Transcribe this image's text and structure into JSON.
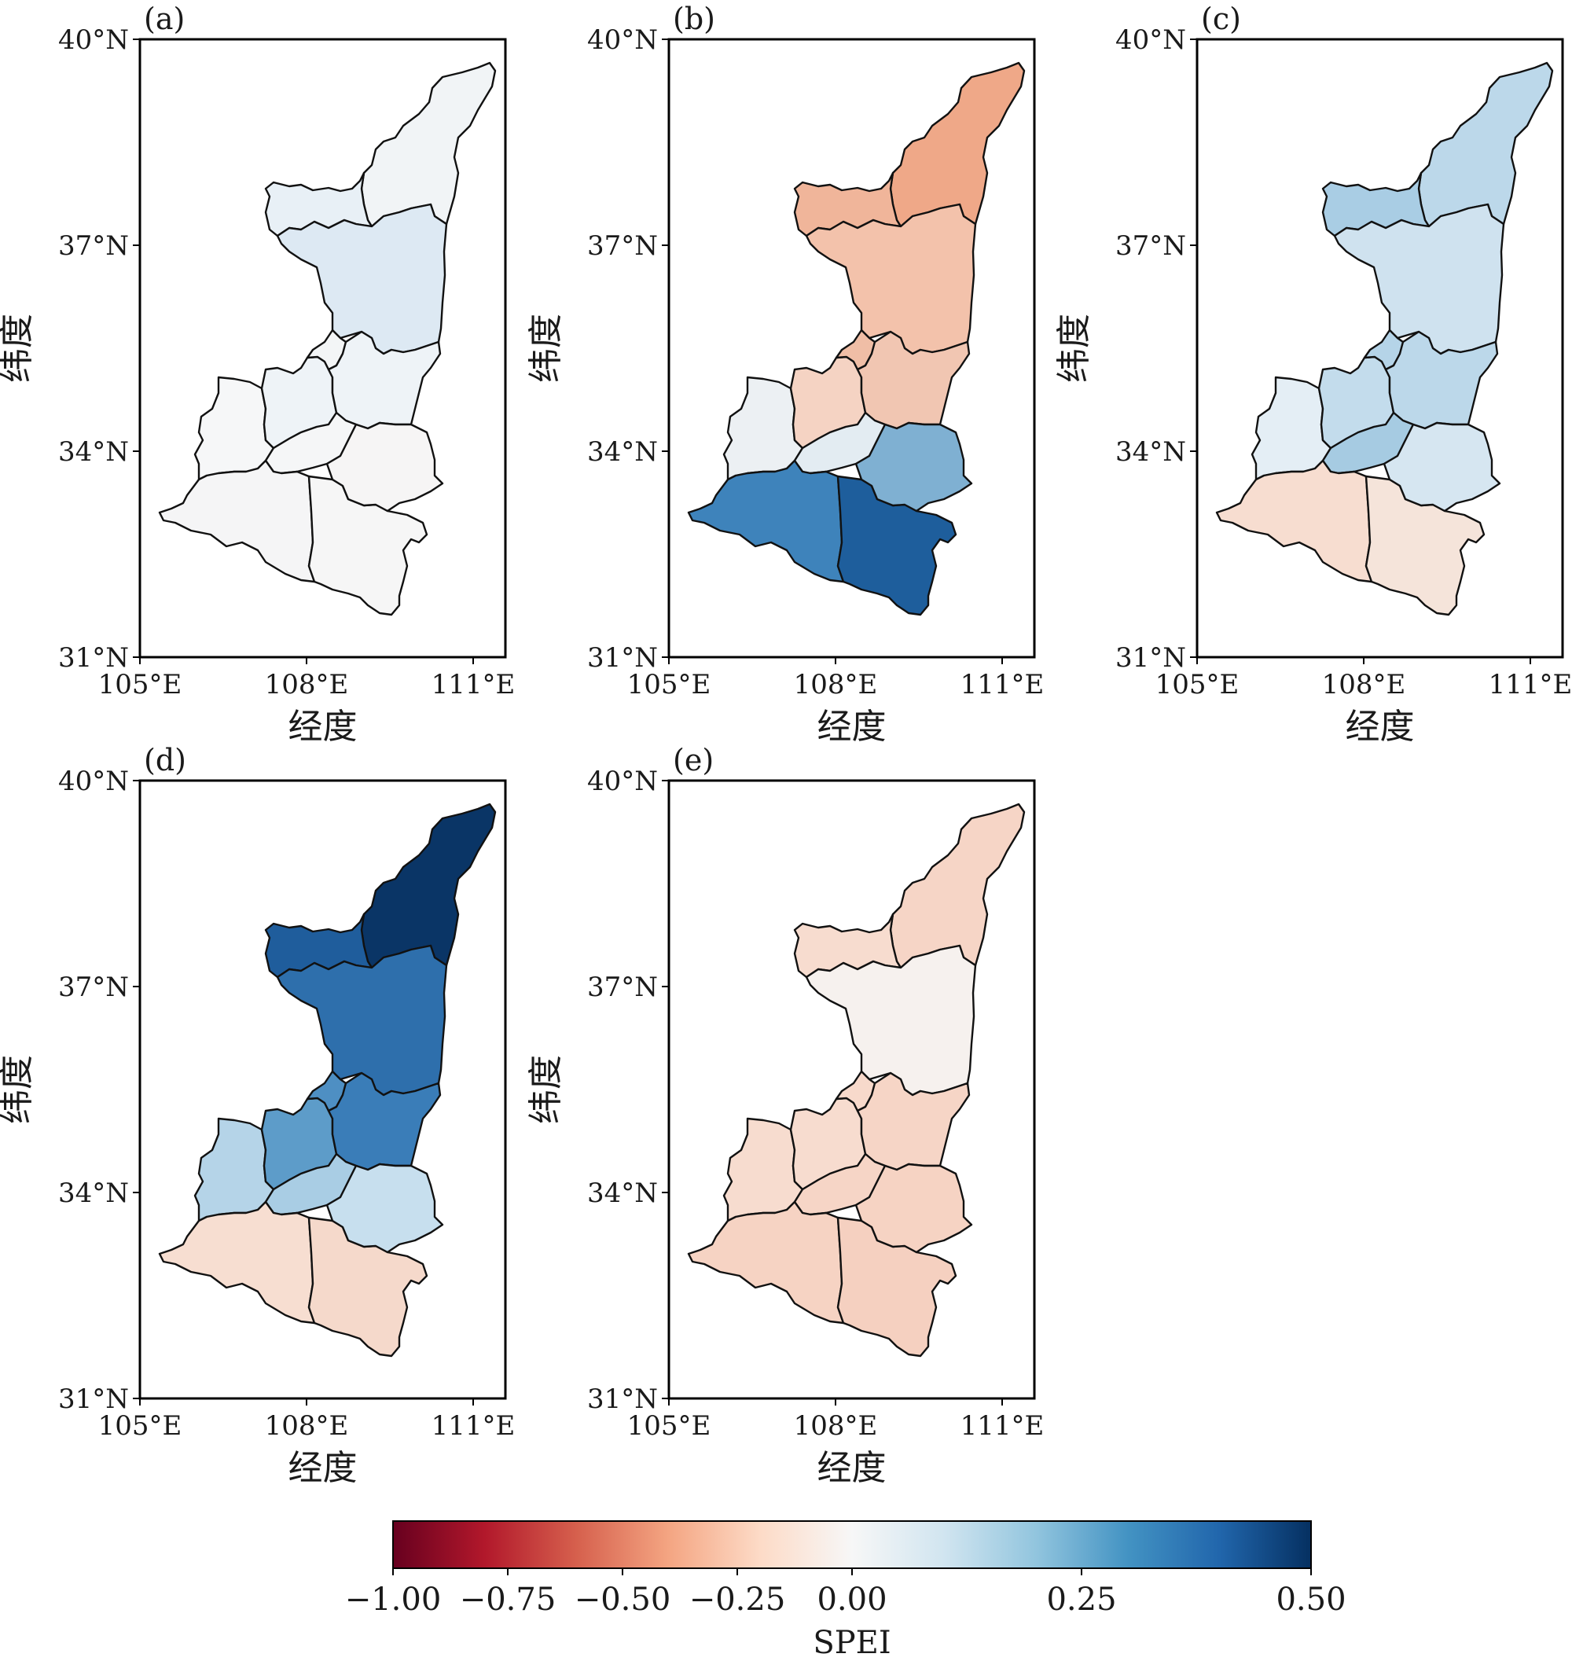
{
  "panels": [
    {
      "label": "(a)",
      "colors": [
        "#f1f4f6",
        "#e8f0f6",
        "#dde9f3",
        "#f6f7f8",
        "#eef3f7",
        "#f3f5f6",
        "#eef3f7",
        "#f5f6f7",
        "#f5f5f6",
        "#f6f6f6",
        "#f6f5f5"
      ]
    },
    {
      "label": "(b)",
      "colors": [
        "#efa888",
        "#f0b59a",
        "#f3c2ab",
        "#ecf0f3",
        "#f5d3c3",
        "#f0bea6",
        "#f1c6b2",
        "#e3ecf2",
        "#3e83bb",
        "#1e5e9c",
        "#7fb0d2"
      ]
    },
    {
      "label": "(c)",
      "colors": [
        "#bcd8ea",
        "#a9cde4",
        "#cfe2ef",
        "#e4eef5",
        "#c3dcec",
        "#b5d4e8",
        "#bcd8ea",
        "#a6cbe2",
        "#f7ddd0",
        "#f5e4da",
        "#d6e6f1"
      ]
    },
    {
      "label": "(d)",
      "colors": [
        "#0a3566",
        "#1f5d9c",
        "#2e6fac",
        "#b5d4e8",
        "#5d9cc9",
        "#4e8fc3",
        "#3a7db8",
        "#a9cde4",
        "#f7ded1",
        "#f5d9cb",
        "#c7dfee"
      ]
    },
    {
      "label": "(e)",
      "colors": [
        "#f6d5c6",
        "#f7dccf",
        "#f6f1ee",
        "#f7dccf",
        "#f7dccf",
        "#f7d9cb",
        "#f6d5c6",
        "#f6d5c6",
        "#f6d3c3",
        "#f5d0c0",
        "#f6d3c3"
      ]
    }
  ],
  "axes": {
    "xlabel": "经度",
    "ylabel": "纬度",
    "xticks": [
      "105°E",
      "108°E",
      "111°E"
    ],
    "yticks": [
      "40°N",
      "37°N",
      "34°N",
      "31°N"
    ],
    "xlim": [
      105,
      111.5
    ],
    "ylim": [
      31,
      40
    ]
  },
  "colorbar": {
    "label": "SPEI",
    "ticks": [
      "−1.00",
      "−0.75",
      "−0.50",
      "−0.25",
      "0.00",
      "0.25",
      "0.50"
    ],
    "stops": [
      "#67001f",
      "#b2182b",
      "#d6604d",
      "#f4a582",
      "#fddbc7",
      "#f7f7f7",
      "#d1e5f0",
      "#92c5de",
      "#4393c3",
      "#2166ac",
      "#053061"
    ]
  }
}
